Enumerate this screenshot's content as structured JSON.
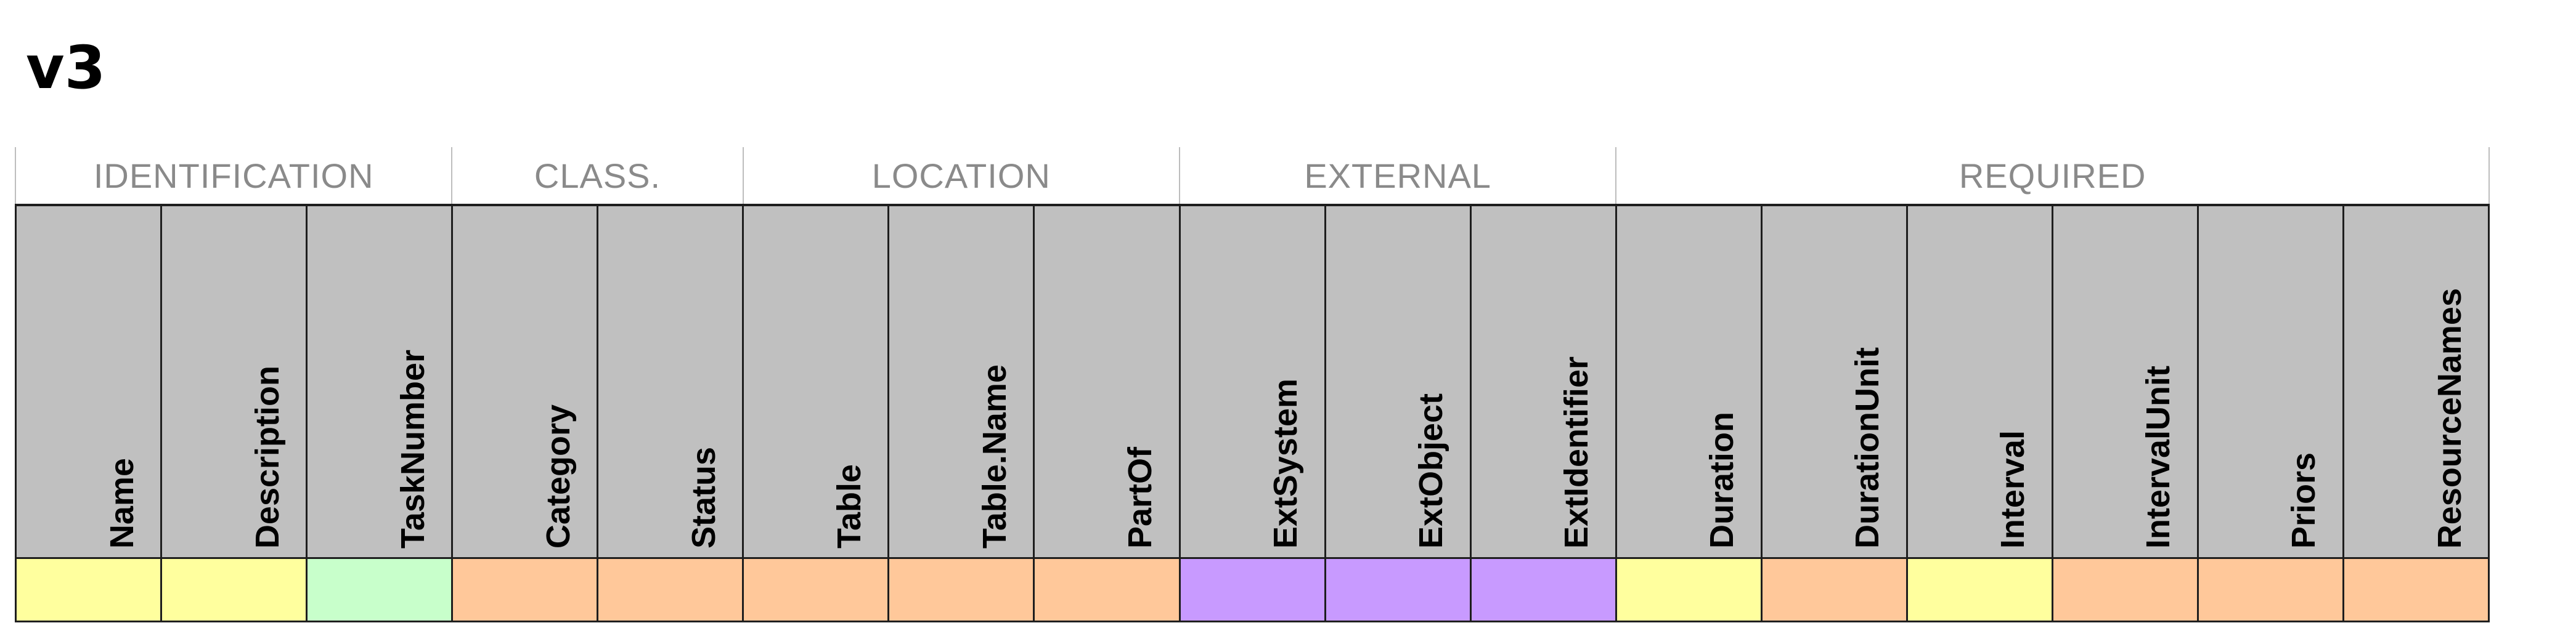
{
  "title": "v3",
  "groups": [
    {
      "label": "IDENTIFICATION",
      "span": 3
    },
    {
      "label": "CLASS.",
      "span": 2
    },
    {
      "label": "LOCATION",
      "span": 3
    },
    {
      "label": "EXTERNAL",
      "span": 3
    },
    {
      "label": "REQUIRED",
      "span": 6
    }
  ],
  "columns": [
    {
      "label": "Name",
      "color": "#ffff9e"
    },
    {
      "label": "Description",
      "color": "#ffff9e"
    },
    {
      "label": "TaskNumber",
      "color": "#c8ffcb"
    },
    {
      "label": "Category",
      "color": "#ffc89a"
    },
    {
      "label": "Status",
      "color": "#ffc89a"
    },
    {
      "label": "Table",
      "color": "#ffc89a"
    },
    {
      "label": "Table.Name",
      "color": "#ffc89a"
    },
    {
      "label": "PartOf",
      "color": "#ffc89a"
    },
    {
      "label": "ExtSystem",
      "color": "#c89aff"
    },
    {
      "label": "ExtObject",
      "color": "#c89aff"
    },
    {
      "label": "ExtIdentifier",
      "color": "#c89aff"
    },
    {
      "label": "Duration",
      "color": "#ffff9e"
    },
    {
      "label": "DurationUnit",
      "color": "#ffc89a"
    },
    {
      "label": "Interval",
      "color": "#ffff9e"
    },
    {
      "label": "IntervalUnit",
      "color": "#ffc89a"
    },
    {
      "label": "Priors",
      "color": "#ffc89a"
    },
    {
      "label": "ResourceNames",
      "color": "#ffc89a"
    }
  ]
}
